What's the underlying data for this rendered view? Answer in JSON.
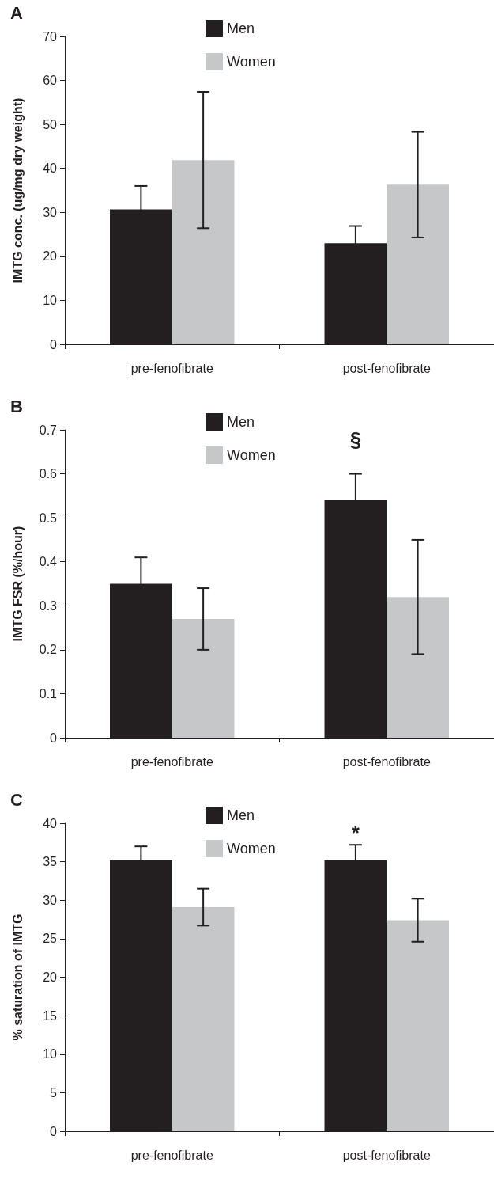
{
  "chart_data": [
    {
      "type": "bar",
      "title": "A",
      "ylabel": "IMTG conc. (ug/mg dry weight)",
      "categories": [
        "pre-fenofibrate",
        "post-fenofibrate"
      ],
      "ylim": [
        0,
        70
      ],
      "yticks": [
        0,
        10,
        20,
        30,
        40,
        50,
        60,
        70
      ],
      "grid": false,
      "legend": "top",
      "series": [
        {
          "name": "Men",
          "color": "#231f20",
          "values": [
            30.7,
            23.0
          ],
          "errors": [
            5.3,
            3.9
          ]
        },
        {
          "name": "Women",
          "color": "#c6c7c9",
          "values": [
            41.9,
            36.3
          ],
          "errors": [
            15.5,
            12.0
          ]
        }
      ]
    },
    {
      "type": "bar",
      "title": "B",
      "ylabel": "IMTG FSR (%/hour)",
      "categories": [
        "pre-fenofibrate",
        "post-fenofibrate"
      ],
      "ylim": [
        0,
        0.7
      ],
      "yticks": [
        0,
        0.1,
        0.2,
        0.3,
        0.4,
        0.5,
        0.6,
        0.7
      ],
      "grid": false,
      "legend": "top",
      "annotations": [
        "§"
      ],
      "series": [
        {
          "name": "Men",
          "color": "#231f20",
          "values": [
            0.35,
            0.54
          ],
          "errors": [
            0.06,
            0.06
          ]
        },
        {
          "name": "Women",
          "color": "#c6c7c9",
          "values": [
            0.27,
            0.32
          ],
          "errors": [
            0.07,
            0.13
          ]
        }
      ]
    },
    {
      "type": "bar",
      "title": "C",
      "ylabel": "% saturation of IMTG",
      "categories": [
        "pre-fenofibrate",
        "post-fenofibrate"
      ],
      "ylim": [
        0,
        40
      ],
      "yticks": [
        0,
        5,
        10,
        15,
        20,
        25,
        30,
        35,
        40
      ],
      "grid": false,
      "legend": "top",
      "annotations": [
        "*"
      ],
      "series": [
        {
          "name": "Men",
          "color": "#231f20",
          "values": [
            35.2,
            35.2
          ],
          "errors": [
            1.8,
            2.0
          ]
        },
        {
          "name": "Women",
          "color": "#c6c7c9",
          "values": [
            29.1,
            27.4
          ],
          "errors": [
            2.4,
            2.8
          ]
        }
      ]
    }
  ]
}
